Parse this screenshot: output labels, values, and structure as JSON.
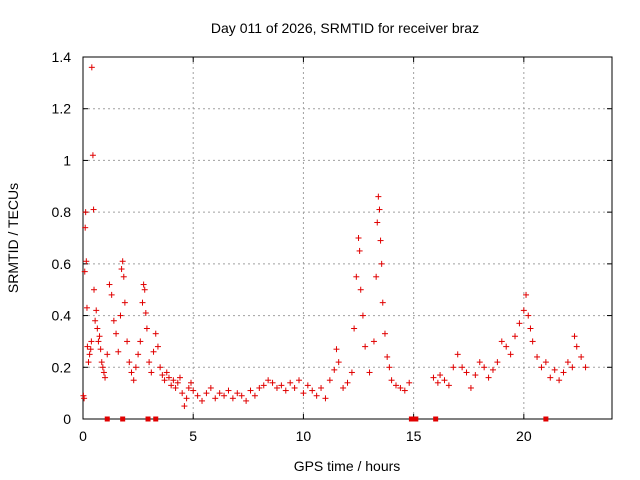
{
  "chart_data": {
    "type": "scatter",
    "title": "Day 011 of 2026, SRMTID for receiver braz",
    "xlabel": "GPS time / hours",
    "ylabel": "SRMTID / TECUs",
    "xlim": [
      0,
      24
    ],
    "ylim": [
      0,
      1.4
    ],
    "xticks": [
      0,
      5,
      10,
      15,
      20
    ],
    "xtick_labels": [
      "0",
      "5",
      "10",
      "15",
      "20"
    ],
    "yticks": [
      0,
      0.2,
      0.4,
      0.6,
      0.8,
      1,
      1.2,
      1.4
    ],
    "ytick_labels": [
      "0",
      "0.2",
      "0.4",
      "0.6",
      "0.8",
      "1",
      "1.2",
      "1.4"
    ],
    "grid": true,
    "series": [
      {
        "name": "SRMTID",
        "color": "#e00000",
        "marker": "plus",
        "points": [
          [
            0.02,
            0.09
          ],
          [
            0.05,
            0.08
          ],
          [
            0.08,
            0.57
          ],
          [
            0.1,
            0.74
          ],
          [
            0.12,
            0.8
          ],
          [
            0.15,
            0.61
          ],
          [
            0.18,
            0.43
          ],
          [
            0.2,
            0.28
          ],
          [
            0.25,
            0.22
          ],
          [
            0.3,
            0.25
          ],
          [
            0.35,
            0.27
          ],
          [
            0.38,
            0.3
          ],
          [
            0.4,
            1.36
          ],
          [
            0.45,
            1.02
          ],
          [
            0.48,
            0.81
          ],
          [
            0.5,
            0.5
          ],
          [
            0.55,
            0.38
          ],
          [
            0.6,
            0.42
          ],
          [
            0.65,
            0.35
          ],
          [
            0.7,
            0.3
          ],
          [
            0.75,
            0.32
          ],
          [
            0.8,
            0.27
          ],
          [
            0.85,
            0.22
          ],
          [
            0.9,
            0.2
          ],
          [
            0.95,
            0.18
          ],
          [
            1.0,
            0.16
          ],
          [
            1.1,
            0.25
          ],
          [
            1.2,
            0.52
          ],
          [
            1.3,
            0.48
          ],
          [
            1.4,
            0.38
          ],
          [
            1.5,
            0.33
          ],
          [
            1.6,
            0.26
          ],
          [
            1.7,
            0.4
          ],
          [
            1.75,
            0.58
          ],
          [
            1.8,
            0.61
          ],
          [
            1.85,
            0.55
          ],
          [
            1.9,
            0.45
          ],
          [
            2.0,
            0.3
          ],
          [
            2.1,
            0.22
          ],
          [
            2.2,
            0.18
          ],
          [
            2.3,
            0.15
          ],
          [
            2.4,
            0.2
          ],
          [
            2.5,
            0.25
          ],
          [
            2.6,
            0.3
          ],
          [
            2.7,
            0.45
          ],
          [
            2.75,
            0.52
          ],
          [
            2.8,
            0.5
          ],
          [
            2.85,
            0.41
          ],
          [
            2.9,
            0.35
          ],
          [
            3.0,
            0.22
          ],
          [
            3.1,
            0.18
          ],
          [
            3.2,
            0.26
          ],
          [
            3.3,
            0.33
          ],
          [
            3.4,
            0.28
          ],
          [
            3.5,
            0.2
          ],
          [
            3.6,
            0.17
          ],
          [
            3.7,
            0.15
          ],
          [
            3.8,
            0.18
          ],
          [
            3.9,
            0.16
          ],
          [
            4.0,
            0.13
          ],
          [
            4.1,
            0.15
          ],
          [
            4.2,
            0.12
          ],
          [
            4.3,
            0.14
          ],
          [
            4.4,
            0.16
          ],
          [
            4.5,
            0.1
          ],
          [
            4.6,
            0.05
          ],
          [
            4.7,
            0.08
          ],
          [
            4.8,
            0.12
          ],
          [
            4.9,
            0.14
          ],
          [
            5.0,
            0.11
          ],
          [
            5.2,
            0.09
          ],
          [
            5.4,
            0.07
          ],
          [
            5.6,
            0.1
          ],
          [
            5.8,
            0.12
          ],
          [
            6.0,
            0.08
          ],
          [
            6.2,
            0.1
          ],
          [
            6.4,
            0.09
          ],
          [
            6.6,
            0.11
          ],
          [
            6.8,
            0.08
          ],
          [
            7.0,
            0.1
          ],
          [
            7.2,
            0.09
          ],
          [
            7.4,
            0.07
          ],
          [
            7.6,
            0.11
          ],
          [
            7.8,
            0.09
          ],
          [
            8.0,
            0.12
          ],
          [
            8.2,
            0.13
          ],
          [
            8.4,
            0.15
          ],
          [
            8.6,
            0.14
          ],
          [
            8.8,
            0.12
          ],
          [
            9.0,
            0.13
          ],
          [
            9.2,
            0.11
          ],
          [
            9.4,
            0.14
          ],
          [
            9.6,
            0.12
          ],
          [
            9.8,
            0.15
          ],
          [
            10.0,
            0.1
          ],
          [
            10.2,
            0.13
          ],
          [
            10.4,
            0.11
          ],
          [
            10.6,
            0.09
          ],
          [
            10.8,
            0.12
          ],
          [
            11.0,
            0.08
          ],
          [
            11.2,
            0.15
          ],
          [
            11.4,
            0.19
          ],
          [
            11.5,
            0.27
          ],
          [
            11.6,
            0.22
          ],
          [
            11.8,
            0.12
          ],
          [
            12.0,
            0.14
          ],
          [
            12.2,
            0.18
          ],
          [
            12.3,
            0.35
          ],
          [
            12.4,
            0.55
          ],
          [
            12.5,
            0.7
          ],
          [
            12.55,
            0.65
          ],
          [
            12.6,
            0.5
          ],
          [
            12.7,
            0.4
          ],
          [
            12.8,
            0.28
          ],
          [
            13.0,
            0.18
          ],
          [
            13.2,
            0.3
          ],
          [
            13.3,
            0.55
          ],
          [
            13.35,
            0.76
          ],
          [
            13.4,
            0.86
          ],
          [
            13.45,
            0.81
          ],
          [
            13.5,
            0.69
          ],
          [
            13.55,
            0.6
          ],
          [
            13.6,
            0.45
          ],
          [
            13.7,
            0.33
          ],
          [
            13.8,
            0.24
          ],
          [
            13.9,
            0.2
          ],
          [
            14.0,
            0.15
          ],
          [
            14.2,
            0.13
          ],
          [
            14.4,
            0.12
          ],
          [
            14.6,
            0.11
          ],
          [
            14.8,
            0.14
          ],
          [
            15.9,
            0.16
          ],
          [
            16.1,
            0.14
          ],
          [
            16.2,
            0.17
          ],
          [
            16.4,
            0.15
          ],
          [
            16.6,
            0.13
          ],
          [
            16.8,
            0.2
          ],
          [
            17.0,
            0.25
          ],
          [
            17.2,
            0.2
          ],
          [
            17.4,
            0.18
          ],
          [
            17.6,
            0.12
          ],
          [
            17.8,
            0.17
          ],
          [
            18.0,
            0.22
          ],
          [
            18.2,
            0.2
          ],
          [
            18.4,
            0.16
          ],
          [
            18.6,
            0.19
          ],
          [
            18.8,
            0.22
          ],
          [
            19.0,
            0.3
          ],
          [
            19.2,
            0.28
          ],
          [
            19.4,
            0.25
          ],
          [
            19.6,
            0.32
          ],
          [
            19.8,
            0.37
          ],
          [
            20.0,
            0.42
          ],
          [
            20.1,
            0.48
          ],
          [
            20.2,
            0.4
          ],
          [
            20.3,
            0.35
          ],
          [
            20.4,
            0.3
          ],
          [
            20.6,
            0.24
          ],
          [
            20.8,
            0.2
          ],
          [
            21.0,
            0.22
          ],
          [
            21.2,
            0.16
          ],
          [
            21.4,
            0.19
          ],
          [
            21.6,
            0.15
          ],
          [
            21.8,
            0.18
          ],
          [
            22.0,
            0.22
          ],
          [
            22.2,
            0.2
          ],
          [
            22.3,
            0.32
          ],
          [
            22.4,
            0.28
          ],
          [
            22.6,
            0.24
          ],
          [
            22.8,
            0.2
          ]
        ],
        "zero_points": [
          1.1,
          1.8,
          2.95,
          3.3,
          14.9,
          15.1,
          16.0,
          21.0
        ]
      }
    ]
  }
}
